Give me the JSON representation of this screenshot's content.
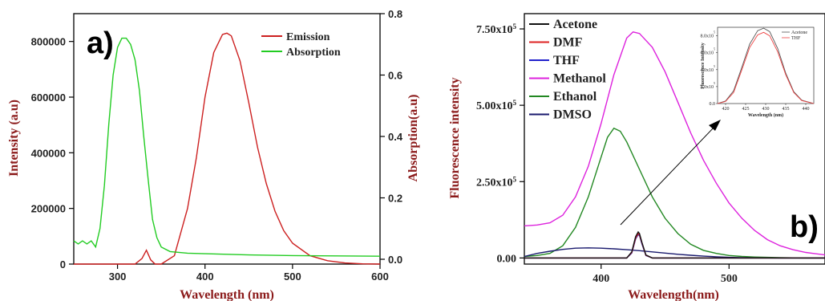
{
  "chart_data": [
    {
      "type": "line",
      "panel_label": "a)",
      "xlabel": "Wavelength (nm)",
      "ylabel": "Intensity (a.u)",
      "y2label": "Absorption(a.u)",
      "xlim": [
        250,
        600
      ],
      "ylim": [
        0,
        900000
      ],
      "y2lim": [
        0,
        0.8
      ],
      "xticks": [
        300,
        400,
        500,
        600
      ],
      "yticks": [
        0,
        200000,
        400000,
        600000,
        800000
      ],
      "y2ticks": [
        0.0,
        0.2,
        0.4,
        0.6,
        0.8
      ],
      "ytick_labels": [
        "0",
        "200000",
        "400000",
        "600000",
        "800000"
      ],
      "y2tick_labels": [
        "0.0",
        "0.2",
        "0.4",
        "0.6",
        "0.8"
      ],
      "legend_position": "top-right",
      "series": [
        {
          "name": "Emission",
          "axis": "left",
          "color": "#cc1f1f",
          "x": [
            250,
            320,
            328,
            333,
            338,
            343,
            350,
            365,
            380,
            390,
            400,
            410,
            420,
            425,
            430,
            440,
            450,
            460,
            470,
            480,
            490,
            500,
            520,
            540,
            560,
            580,
            600
          ],
          "y": [
            0,
            0,
            20000,
            50000,
            15000,
            0,
            0,
            30000,
            200000,
            380000,
            600000,
            760000,
            825000,
            830000,
            820000,
            730000,
            580000,
            420000,
            290000,
            190000,
            120000,
            75000,
            30000,
            12000,
            4000,
            1000,
            0
          ]
        },
        {
          "name": "Absorption",
          "axis": "right",
          "color": "#22cc22",
          "x": [
            250,
            255,
            260,
            265,
            270,
            275,
            280,
            285,
            290,
            295,
            300,
            305,
            310,
            315,
            320,
            325,
            330,
            335,
            340,
            345,
            350,
            360,
            380,
            400,
            450,
            500,
            550,
            600
          ],
          "y": [
            0.06,
            0.05,
            0.06,
            0.05,
            0.06,
            0.04,
            0.1,
            0.24,
            0.44,
            0.6,
            0.69,
            0.72,
            0.72,
            0.7,
            0.65,
            0.55,
            0.4,
            0.26,
            0.13,
            0.07,
            0.04,
            0.025,
            0.02,
            0.018,
            0.014,
            0.012,
            0.011,
            0.01
          ]
        }
      ]
    },
    {
      "type": "line",
      "panel_label": "b)",
      "xlabel": "Wavelength(nm)",
      "ylabel": "Fluorescence intensity",
      "xlim": [
        340,
        575
      ],
      "ylim": [
        -20000,
        800000
      ],
      "xticks": [
        400,
        500
      ],
      "yticks": [
        0,
        250000,
        500000,
        750000
      ],
      "ytick_labels": [
        "0.00",
        "2.50x10",
        "5.00x10",
        "7.50x10"
      ],
      "ytick_exponents": [
        "",
        "5",
        "5",
        "5"
      ],
      "legend_position": "top-left",
      "series": [
        {
          "name": "Acetone",
          "color": "#111111",
          "x": [
            340,
            420,
            424,
            427,
            429,
            430,
            432,
            435,
            440,
            575
          ],
          "y": [
            0,
            0,
            20000,
            70000,
            85000,
            80000,
            50000,
            10000,
            0,
            0
          ]
        },
        {
          "name": "DMF",
          "color": "#dd2222",
          "x": [
            340,
            420,
            424,
            427,
            429,
            430,
            432,
            435,
            440,
            575
          ],
          "y": [
            0,
            0,
            18000,
            65000,
            80000,
            76000,
            48000,
            9000,
            0,
            0
          ]
        },
        {
          "name": "THF",
          "color": "#2222cc",
          "x": [
            340,
            420,
            424,
            427,
            429,
            430,
            432,
            435,
            440,
            575
          ],
          "y": [
            0,
            0,
            16000,
            62000,
            77000,
            73000,
            45000,
            8000,
            0,
            0
          ]
        },
        {
          "name": "Methanol",
          "color": "#dd22dd",
          "x": [
            340,
            350,
            360,
            370,
            380,
            390,
            400,
            410,
            420,
            425,
            430,
            440,
            450,
            460,
            470,
            480,
            490,
            500,
            510,
            520,
            530,
            540,
            550,
            560,
            575
          ],
          "y": [
            105000,
            108000,
            115000,
            140000,
            200000,
            300000,
            440000,
            600000,
            720000,
            740000,
            735000,
            690000,
            610000,
            510000,
            410000,
            320000,
            245000,
            180000,
            130000,
            90000,
            60000,
            40000,
            27000,
            18000,
            10000
          ]
        },
        {
          "name": "Ethanol",
          "color": "#228822",
          "x": [
            340,
            350,
            360,
            370,
            380,
            390,
            400,
            405,
            410,
            415,
            420,
            430,
            440,
            450,
            460,
            470,
            480,
            490,
            500,
            510,
            520,
            540,
            560,
            575
          ],
          "y": [
            5000,
            8000,
            15000,
            40000,
            100000,
            200000,
            330000,
            395000,
            425000,
            415000,
            380000,
            290000,
            200000,
            130000,
            80000,
            45000,
            25000,
            15000,
            8000,
            5000,
            3000,
            1000,
            0,
            0
          ]
        },
        {
          "name": "DMSO",
          "color": "#1a1a6e",
          "x": [
            340,
            350,
            360,
            370,
            380,
            390,
            400,
            410,
            420,
            430,
            440,
            450,
            460,
            470,
            480,
            490,
            500,
            510,
            520,
            540,
            560,
            575
          ],
          "y": [
            5000,
            15000,
            22000,
            28000,
            32000,
            33000,
            32000,
            30000,
            27000,
            24000,
            20000,
            16000,
            12000,
            9000,
            6000,
            4000,
            2000,
            1000,
            500,
            0,
            0,
            0
          ]
        }
      ]
    },
    {
      "type": "line",
      "role": "inset",
      "xlabel": "Wavelength (nm)",
      "ylabel": "Fluorescence Intensity",
      "xlim": [
        418,
        442
      ],
      "ylim": [
        0,
        900000
      ],
      "xticks": [
        420,
        425,
        430,
        435,
        440
      ],
      "yticks": [
        0,
        200000,
        400000,
        600000,
        800000
      ],
      "ytick_labels": [
        "0.0",
        "2.0x10",
        "4.0x10",
        "6.0x10",
        "8.0x10"
      ],
      "ytick_exponents": [
        "",
        "5",
        "5",
        "5",
        "5"
      ],
      "legend_position": "top-right",
      "series": [
        {
          "name": "Acetone",
          "color": "#555555",
          "x": [
            418,
            420,
            422,
            424,
            426,
            428,
            429.5,
            431,
            433,
            435,
            437,
            439,
            442
          ],
          "y": [
            0,
            30000,
            150000,
            420000,
            700000,
            860000,
            890000,
            850000,
            650000,
            360000,
            140000,
            40000,
            0
          ]
        },
        {
          "name": "THF",
          "color": "#ee4444",
          "x": [
            418,
            420,
            422,
            424,
            426,
            428,
            429.5,
            431,
            433,
            435,
            437,
            439,
            442
          ],
          "y": [
            0,
            25000,
            130000,
            390000,
            660000,
            810000,
            840000,
            800000,
            610000,
            340000,
            130000,
            35000,
            0
          ]
        }
      ]
    }
  ]
}
